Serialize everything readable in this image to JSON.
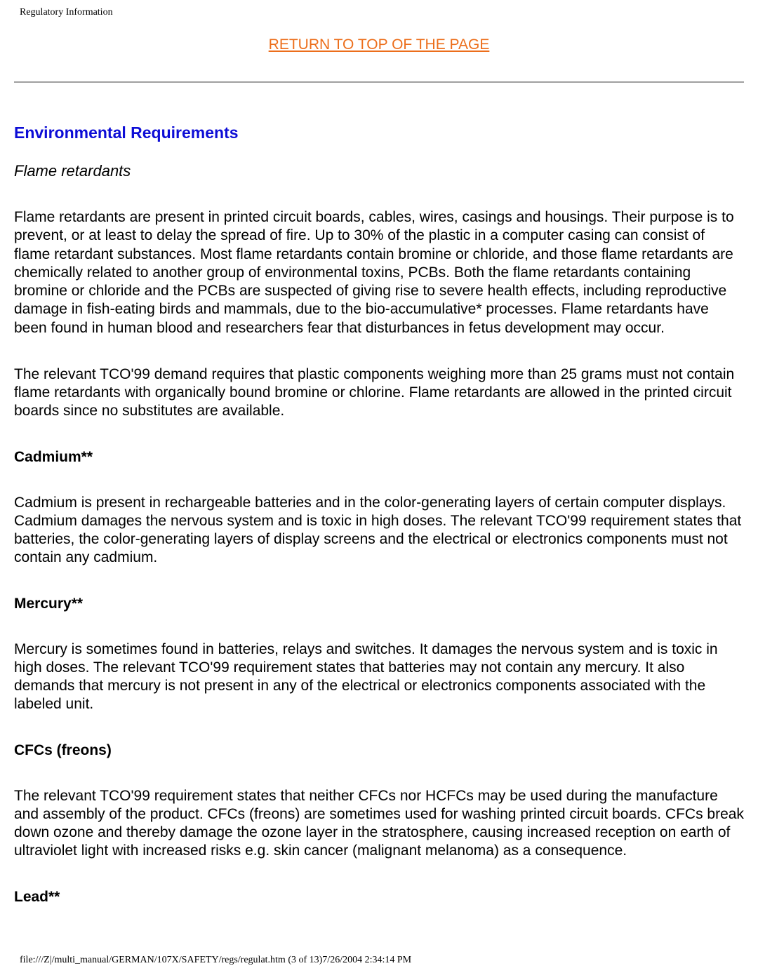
{
  "header": {
    "title": "Regulatory Information"
  },
  "topLink": {
    "label": "RETURN TO TOP OF THE PAGE"
  },
  "section": {
    "heading": "Environmental Requirements",
    "flame": {
      "subtitle": "Flame retardants",
      "p1": "Flame retardants are present in printed circuit boards, cables, wires, casings and housings. Their purpose is to prevent, or at least to delay the spread of fire. Up to 30% of the plastic in a computer casing can consist of flame retardant substances. Most flame retardants contain bromine or chloride, and those flame retardants are chemically related to another group of environmental toxins, PCBs. Both the flame retardants containing bromine or chloride and the PCBs are suspected of giving rise to severe health effects, including reproductive damage in fish-eating birds and mammals, due to the bio-accumulative* processes. Flame retardants have been found in human blood and researchers fear that disturbances in fetus development may occur.",
      "p2": "The relevant TCO'99 demand requires that plastic components weighing more than 25 grams must not contain flame retardants with organically bound bromine or chlorine. Flame retardants are allowed in the printed circuit boards since no substitutes are available."
    },
    "cadmium": {
      "title": "Cadmium**",
      "p1": "Cadmium is present in rechargeable batteries and in the color-generating layers of certain computer displays. Cadmium damages the nervous system and is toxic in high doses. The relevant TCO'99 requirement states that batteries, the color-generating layers of display screens and the electrical or electronics components must not contain any cadmium."
    },
    "mercury": {
      "title": "Mercury**",
      "p1": "Mercury is sometimes found in batteries, relays and switches. It damages the nervous system and is toxic in high doses. The relevant TCO'99 requirement states that batteries may not contain any mercury. It also demands that mercury is not present in any of the electrical or electronics components associated with the labeled unit."
    },
    "cfcs": {
      "title": "CFCs (freons)",
      "p1": "The relevant TCO'99 requirement states that neither CFCs nor HCFCs may be used during the manufacture and assembly of the product. CFCs (freons) are sometimes used for washing printed circuit boards. CFCs break down ozone and thereby damage the ozone layer in the stratosphere, causing increased reception on earth of ultraviolet light with increased risks e.g. skin cancer (malignant melanoma) as a consequence."
    },
    "lead": {
      "title": "Lead**"
    }
  },
  "footer": {
    "path": "file:///Z|/multi_manual/GERMAN/107X/SAFETY/regs/regulat.htm (3 of 13)7/26/2004 2:34:14 PM"
  },
  "colors": {
    "link": "#ec6e1b",
    "heading": "#0d0dd6",
    "text": "#000000",
    "hr": "#a0a0a0",
    "bg": "#ffffff"
  },
  "typography": {
    "header_fontsize": 14,
    "link_fontsize": 21,
    "heading_fontsize": 23,
    "body_fontsize": 21,
    "body_family": "Arial",
    "header_family": "Times New Roman"
  }
}
